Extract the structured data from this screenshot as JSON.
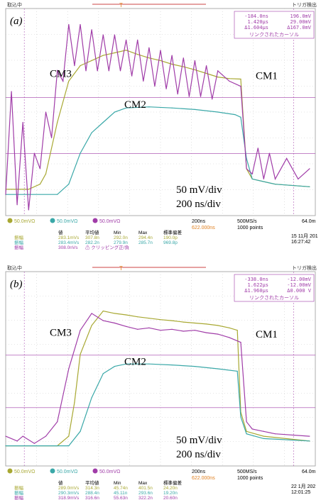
{
  "chart_data": [
    {
      "type": "line",
      "panel_label": "(a)",
      "top_bar": {
        "status": "取込中",
        "trigger": "トリガ検出"
      },
      "series_labels": [
        "CM3",
        "CM1",
        "CM2"
      ],
      "scale_text": {
        "volts": "50 mV/div",
        "time": "200 ns/div"
      },
      "cursor_box": {
        "row1": [
          "-184.0ns",
          "196.0mV"
        ],
        "row2": [
          "1.420µs",
          "29.00mV"
        ],
        "row3": [
          "Δ1.604µs",
          "Δ167.0mV"
        ],
        "footer": "リンクされたカーソル"
      },
      "channel_bar": {
        "ch1": "50.0mVΩ",
        "ch2": "50.0mVΩ",
        "ch3": "50.0mVΩ",
        "timebase": "200ns",
        "trigger_pos": "622.000ns",
        "sample_rate": "500MS/s",
        "points": "1000 points",
        "trigger_level": "64.0m"
      },
      "measurements": {
        "headers": [
          "値",
          "平均値",
          "Min",
          "Max",
          "標準偏差"
        ],
        "rows": [
          [
            "振幅",
            "283.1mVs",
            "307.8n",
            "292.0n",
            "294.4n",
            "190.0p"
          ],
          [
            "振幅",
            "283.4mVs",
            "282.2n",
            "279.9n",
            "285.7n",
            "969.8p"
          ],
          [
            "振幅",
            "308.0nVs",
            "⚠ クリッピング正/負",
            "",
            "",
            ""
          ]
        ]
      },
      "timestamp": [
        "15 11月 201",
        "16:27:42"
      ],
      "series": [
        {
          "name": "CM1",
          "color": "#a8a832",
          "values": [
            [
              -1.05,
              0
            ],
            [
              -0.85,
              0
            ],
            [
              -0.75,
              10
            ],
            [
              -0.7,
              30
            ],
            [
              -0.6,
              130
            ],
            [
              -0.5,
              210
            ],
            [
              -0.4,
              240
            ],
            [
              -0.3,
              250
            ],
            [
              -0.2,
              260
            ],
            [
              -0.1,
              265
            ],
            [
              0,
              270
            ],
            [
              0.1,
              262
            ],
            [
              0.2,
              255
            ],
            [
              0.3,
              250
            ],
            [
              0.4,
              243
            ],
            [
              0.5,
              238
            ],
            [
              0.6,
              232
            ],
            [
              0.7,
              225
            ],
            [
              0.8,
              218
            ],
            [
              0.9,
              215
            ],
            [
              1.0,
              214
            ],
            [
              1.05,
              40
            ],
            [
              1.1,
              20
            ],
            [
              1.3,
              10
            ],
            [
              1.6,
              5
            ]
          ]
        },
        {
          "name": "CM2",
          "color": "#3aa8a8",
          "values": [
            [
              -1.05,
              -10
            ],
            [
              -0.6,
              -10
            ],
            [
              -0.5,
              10
            ],
            [
              -0.4,
              70
            ],
            [
              -0.3,
              110
            ],
            [
              -0.2,
              130
            ],
            [
              -0.1,
              150
            ],
            [
              0,
              158
            ],
            [
              0.2,
              160
            ],
            [
              0.4,
              158
            ],
            [
              0.6,
              155
            ],
            [
              0.8,
              150
            ],
            [
              0.95,
              145
            ],
            [
              1.0,
              140
            ],
            [
              1.05,
              60
            ],
            [
              1.1,
              20
            ],
            [
              1.3,
              10
            ],
            [
              1.6,
              5
            ]
          ]
        },
        {
          "name": "CM3",
          "color": "#a03ca8",
          "values": [
            [
              -1.05,
              -10
            ],
            [
              -1.0,
              190
            ],
            [
              -0.95,
              -30
            ],
            [
              -0.9,
              130
            ],
            [
              -0.85,
              -40
            ],
            [
              -0.8,
              70
            ],
            [
              -0.75,
              40
            ],
            [
              -0.7,
              150
            ],
            [
              -0.65,
              100
            ],
            [
              -0.6,
              230
            ],
            [
              -0.55,
              210
            ],
            [
              -0.5,
              320
            ],
            [
              -0.45,
              240
            ],
            [
              -0.4,
              320
            ],
            [
              -0.35,
              230
            ],
            [
              -0.3,
              310
            ],
            [
              -0.25,
              230
            ],
            [
              -0.2,
              300
            ],
            [
              -0.15,
              230
            ],
            [
              -0.1,
              300
            ],
            [
              -0.05,
              230
            ],
            [
              0,
              290
            ],
            [
              0.05,
              220
            ],
            [
              0.1,
              290
            ],
            [
              0.15,
              210
            ],
            [
              0.2,
              275
            ],
            [
              0.25,
              200
            ],
            [
              0.3,
              270
            ],
            [
              0.35,
              195
            ],
            [
              0.4,
              260
            ],
            [
              0.45,
              185
            ],
            [
              0.5,
              255
            ],
            [
              0.55,
              180
            ],
            [
              0.6,
              250
            ],
            [
              0.65,
              180
            ],
            [
              0.7,
              240
            ],
            [
              0.75,
              175
            ],
            [
              0.8,
              230
            ],
            [
              0.9,
              210
            ],
            [
              1.0,
              200
            ],
            [
              1.05,
              40
            ],
            [
              1.1,
              30
            ],
            [
              1.15,
              80
            ],
            [
              1.2,
              20
            ],
            [
              1.25,
              70
            ],
            [
              1.3,
              20
            ],
            [
              1.4,
              60
            ],
            [
              1.5,
              20
            ],
            [
              1.6,
              40
            ]
          ]
        }
      ]
    },
    {
      "type": "line",
      "panel_label": "(b)",
      "top_bar": {
        "status": "取込中",
        "trigger": "トリガ検出"
      },
      "series_labels": [
        "CM3",
        "CM1",
        "CM2"
      ],
      "scale_text": {
        "volts": "50 mV/div",
        "time": "200 ns/div"
      },
      "cursor_box": {
        "row1": [
          "-338.0ns",
          "-12.00mV"
        ],
        "row2": [
          "1.622µs",
          "-12.00mV"
        ],
        "row3": [
          "Δ1.960µs",
          "Δ0.000 V"
        ],
        "footer": "リンクされたカーソル"
      },
      "channel_bar": {
        "ch1": "50.0mVΩ",
        "ch2": "50.0mVΩ",
        "ch3": "50.0mVΩ",
        "timebase": "200ns",
        "trigger_pos": "622.000ns",
        "sample_rate": "500MS/s",
        "points": "1000 points",
        "trigger_level": "64.0m"
      },
      "measurements": {
        "headers": [
          "値",
          "平均値",
          "Min",
          "Max",
          "標準偏差"
        ],
        "rows": [
          [
            "振幅",
            "289.0mVs",
            "314.3n",
            "45.74n",
            "401.5n",
            "24.20n"
          ],
          [
            "振幅",
            "290.3mVs",
            "288.4n",
            "45.11n",
            "293.6n",
            "19.20n"
          ],
          [
            "振幅",
            "318.9mVs",
            "316.6n",
            "55.63n",
            "322.2n",
            "20.60n"
          ]
        ]
      },
      "timestamp": [
        "22 1月 202",
        "12:01:25"
      ],
      "series": [
        {
          "name": "CM1",
          "color": "#a8a832",
          "values": [
            [
              -1.05,
              -10
            ],
            [
              -0.6,
              -10
            ],
            [
              -0.5,
              10
            ],
            [
              -0.45,
              80
            ],
            [
              -0.4,
              180
            ],
            [
              -0.3,
              240
            ],
            [
              -0.2,
              270
            ],
            [
              -0.1,
              265
            ],
            [
              0,
              262
            ],
            [
              0.1,
              258
            ],
            [
              0.2,
              255
            ],
            [
              0.3,
              252
            ],
            [
              0.4,
              250
            ],
            [
              0.5,
              247
            ],
            [
              0.6,
              245
            ],
            [
              0.7,
              243
            ],
            [
              0.8,
              240
            ],
            [
              0.9,
              235
            ],
            [
              0.97,
              230
            ],
            [
              1.0,
              60
            ],
            [
              1.05,
              20
            ],
            [
              1.2,
              10
            ],
            [
              1.6,
              0
            ]
          ]
        },
        {
          "name": "CM2",
          "color": "#3aa8a8",
          "values": [
            [
              -1.05,
              -10
            ],
            [
              -0.5,
              -10
            ],
            [
              -0.4,
              20
            ],
            [
              -0.3,
              90
            ],
            [
              -0.2,
              140
            ],
            [
              -0.1,
              155
            ],
            [
              0,
              160
            ],
            [
              0.2,
              160
            ],
            [
              0.4,
              158
            ],
            [
              0.6,
              155
            ],
            [
              0.8,
              150
            ],
            [
              0.97,
              145
            ],
            [
              1.0,
              50
            ],
            [
              1.05,
              15
            ],
            [
              1.2,
              5
            ],
            [
              1.6,
              0
            ]
          ]
        },
        {
          "name": "CM3",
          "color": "#a03ca8",
          "values": [
            [
              -1.05,
              10
            ],
            [
              -0.95,
              0
            ],
            [
              -0.9,
              10
            ],
            [
              -0.8,
              -5
            ],
            [
              -0.7,
              10
            ],
            [
              -0.6,
              40
            ],
            [
              -0.5,
              150
            ],
            [
              -0.4,
              230
            ],
            [
              -0.3,
              265
            ],
            [
              -0.2,
              250
            ],
            [
              -0.1,
              245
            ],
            [
              0,
              238
            ],
            [
              0.1,
              232
            ],
            [
              0.2,
              235
            ],
            [
              0.3,
              230
            ],
            [
              0.4,
              232
            ],
            [
              0.5,
              228
            ],
            [
              0.6,
              230
            ],
            [
              0.7,
              225
            ],
            [
              0.8,
              222
            ],
            [
              0.9,
              215
            ],
            [
              1.0,
              205
            ],
            [
              1.05,
              40
            ],
            [
              1.1,
              25
            ],
            [
              1.2,
              20
            ],
            [
              1.3,
              15
            ],
            [
              1.6,
              10
            ]
          ]
        }
      ]
    }
  ]
}
